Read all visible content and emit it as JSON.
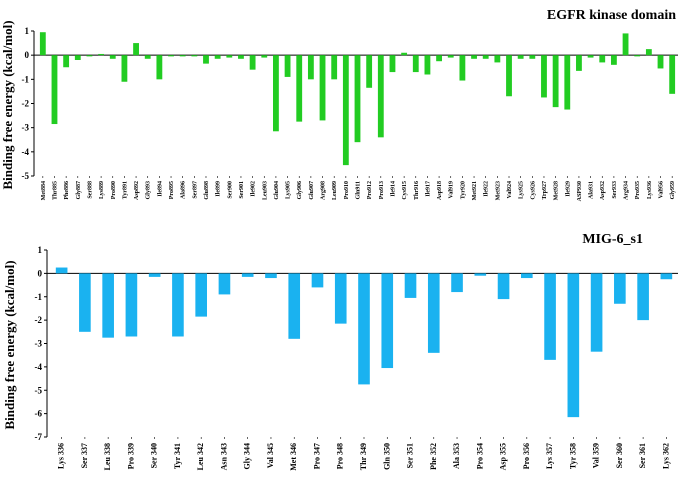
{
  "chart_data": [
    {
      "type": "bar",
      "title": "EGFR  kinase domain",
      "ylabel": "Binding free energy (kcal/mol)",
      "xlabel": "",
      "ylim": [
        -5,
        1
      ],
      "yticks": [
        1,
        0,
        -1,
        -2,
        -3,
        -4,
        -5
      ],
      "grid": false,
      "color": "#22cc22",
      "categories": [
        "Met884",
        "Thr885",
        "Phe886",
        "Gly887",
        "Ser888",
        "Lys889",
        "Pro890",
        "Tyr891",
        "Asp892",
        "Gly893",
        "Ile894",
        "Pro895",
        "Ala896",
        "Ser897",
        "Glu898",
        "Ile899",
        "Ser900",
        "Ser901",
        "Ile902",
        "Leu903",
        "Glu904",
        "Lys905",
        "Gly906",
        "Glu907",
        "Arg908",
        "Leu909",
        "Pro910",
        "Gln911",
        "Pro912",
        "Pro913",
        "Ile914",
        "Cys915",
        "Thr916",
        "Ile917",
        "Asp918",
        "Val919",
        "Tyr920",
        "Met921",
        "Ile922",
        "Met923",
        "Val924",
        "Lys925",
        "Cys926",
        "Trp927",
        "Met928",
        "Ile929",
        "ASP930",
        "Ala931",
        "Asp932",
        "Ser933",
        "Arg934",
        "Pro935",
        "Lys936",
        "Val956",
        "Gly959"
      ],
      "values": [
        0.95,
        -2.85,
        -0.5,
        -0.2,
        -0.05,
        0.05,
        -0.15,
        -1.1,
        0.5,
        -0.15,
        -1.0,
        -0.05,
        -0.05,
        -0.05,
        -0.35,
        -0.15,
        -0.1,
        -0.15,
        -0.6,
        -0.1,
        -3.15,
        -0.9,
        -2.75,
        -1.0,
        -2.7,
        -1.0,
        -4.55,
        -3.6,
        -1.35,
        -3.4,
        -0.7,
        0.1,
        -0.7,
        -0.8,
        -0.25,
        -0.1,
        -1.05,
        -0.15,
        -0.15,
        -0.3,
        -1.7,
        -0.15,
        -0.15,
        -1.75,
        -2.15,
        -2.25,
        -0.65,
        -0.1,
        -0.3,
        -0.4,
        0.9,
        -0.05,
        0.25,
        -0.55,
        -1.6
      ]
    },
    {
      "type": "bar",
      "title": "MIG-6_s1",
      "ylabel": "Binding free energy (kcal/mol)",
      "xlabel": "",
      "ylim": [
        -7,
        1
      ],
      "yticks": [
        1,
        0,
        -1,
        -2,
        -3,
        -4,
        -5,
        -6,
        -7
      ],
      "grid": false,
      "color": "#1ab2f0",
      "categories": [
        "Lys 336",
        "Ser 337",
        "Leu 338",
        "Pro 339",
        "Ser 340",
        "Tyr 341",
        "Leu 342",
        "Asn 343",
        "Gly 344",
        "Val 345",
        "Met 346",
        "Pro 347",
        "Pro 348",
        "Thr 349",
        "Gln 350",
        "Ser 351",
        "Phe 352",
        "Ala 353",
        "Pro 354",
        "Asp 355",
        "Pro 356",
        "Lys 357",
        "Tyr 358",
        "Val 359",
        "Ser 360",
        "Ser 361",
        "Lys 362"
      ],
      "values": [
        0.25,
        -2.5,
        -2.75,
        -2.7,
        -0.15,
        -2.7,
        -1.85,
        -0.9,
        -0.15,
        -0.2,
        -2.8,
        -0.6,
        -2.15,
        -4.75,
        -4.05,
        -1.05,
        -3.4,
        -0.8,
        -0.1,
        -1.1,
        -0.2,
        -3.7,
        -6.15,
        -3.35,
        -1.3,
        -2.0,
        -0.25
      ]
    }
  ]
}
